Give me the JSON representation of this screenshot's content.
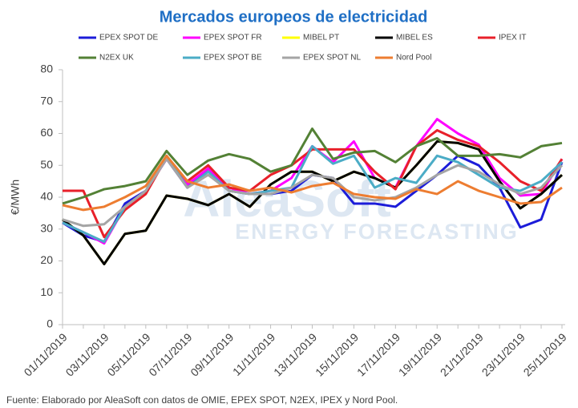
{
  "chart_data": {
    "type": "line",
    "title": "Mercados europeos de electricidad",
    "y_label": "€/MWh",
    "source": "Fuente: Elaborado por AleaSoft con datos de OMIE, EPEX SPOT, N2EX, IPEX y Nord Pool.",
    "watermark": [
      "AleaSoft",
      "ENERGY FORECASTING"
    ],
    "categories": [
      "01/11/2019",
      null,
      "03/11/2019",
      null,
      "05/11/2019",
      null,
      "07/11/2019",
      null,
      "09/11/2019",
      null,
      "11/11/2019",
      null,
      "13/11/2019",
      null,
      "15/11/2019",
      null,
      "17/11/2019",
      null,
      "19/11/2019",
      null,
      "21/11/2019",
      null,
      "23/11/2019",
      null,
      "25/11/2019"
    ],
    "ylim": [
      0,
      80
    ],
    "yticks": [
      0,
      10,
      20,
      30,
      40,
      50,
      60,
      70,
      80
    ],
    "grid": false,
    "legend": "top",
    "series": [
      {
        "name": "EPEX SPOT DE",
        "color": "#1c1cd9",
        "values": [
          32,
          28,
          26,
          38,
          42,
          52,
          43,
          49,
          42,
          41,
          41,
          42,
          47,
          46,
          38,
          38,
          37,
          42,
          47,
          53,
          50,
          43,
          30.5,
          33,
          51
        ]
      },
      {
        "name": "EPEX SPOT FR",
        "color": "#ff00ff",
        "values": [
          32,
          29,
          25.5,
          37,
          42,
          52,
          44,
          49,
          43,
          41,
          42,
          46,
          56,
          51,
          57.5,
          46,
          43,
          56,
          64.5,
          60,
          56.5,
          46,
          40.5,
          41,
          52
        ]
      },
      {
        "name": "MIBEL PT",
        "color": "#ffff00",
        "values": [
          33,
          28,
          19,
          28.5,
          29.5,
          40.5,
          39.5,
          37.5,
          41,
          37,
          44,
          48,
          48,
          45,
          48,
          46,
          43,
          50,
          57.5,
          57,
          55,
          45,
          36.5,
          41,
          47
        ]
      },
      {
        "name": "MIBEL ES",
        "color": "#000000",
        "values": [
          33,
          28,
          19,
          28.5,
          29.5,
          40.5,
          39.5,
          37.5,
          41,
          37,
          44,
          48,
          48,
          45,
          48,
          46,
          43,
          50,
          57.5,
          57,
          55,
          45,
          36.5,
          41,
          47
        ]
      },
      {
        "name": "IPEX IT",
        "color": "#e8202a",
        "values": [
          42,
          42,
          27.5,
          36,
          41,
          52.5,
          45,
          50,
          43,
          42,
          47,
          50,
          55,
          55,
          55,
          48,
          42.5,
          56,
          61,
          58,
          56,
          51,
          45,
          42,
          52
        ]
      },
      {
        "name": "N2EX UK",
        "color": "#538135",
        "values": [
          38,
          40,
          42.5,
          43.5,
          45,
          54.5,
          47,
          51.5,
          53.5,
          52,
          48,
          50,
          61.5,
          52,
          54,
          54.5,
          51,
          56,
          58.5,
          53,
          53,
          53.5,
          52.5,
          56,
          57
        ]
      },
      {
        "name": "EPEX SPOT BE",
        "color": "#4bacc6",
        "values": [
          32,
          29,
          26,
          37,
          42,
          53,
          43,
          48,
          42,
          41,
          42,
          43,
          56,
          50.5,
          53,
          43,
          46,
          44.5,
          53,
          51,
          47,
          43,
          42,
          45,
          51
        ]
      },
      {
        "name": "EPEX SPOT NL",
        "color": "#a5a5a5",
        "values": [
          33,
          31,
          31.5,
          37,
          42,
          52,
          43,
          47,
          42,
          41,
          41,
          43,
          47,
          46,
          40,
          39,
          40,
          43,
          47,
          50,
          48,
          44,
          41,
          43,
          50
        ]
      },
      {
        "name": "Nord Pool",
        "color": "#ed7d31",
        "values": [
          37.5,
          36,
          37,
          40,
          43.5,
          53,
          45,
          43,
          44,
          42,
          43,
          41.5,
          43.5,
          44.5,
          41,
          40,
          39.5,
          42.5,
          41,
          45,
          42,
          40,
          38,
          38.5,
          43
        ]
      }
    ]
  }
}
